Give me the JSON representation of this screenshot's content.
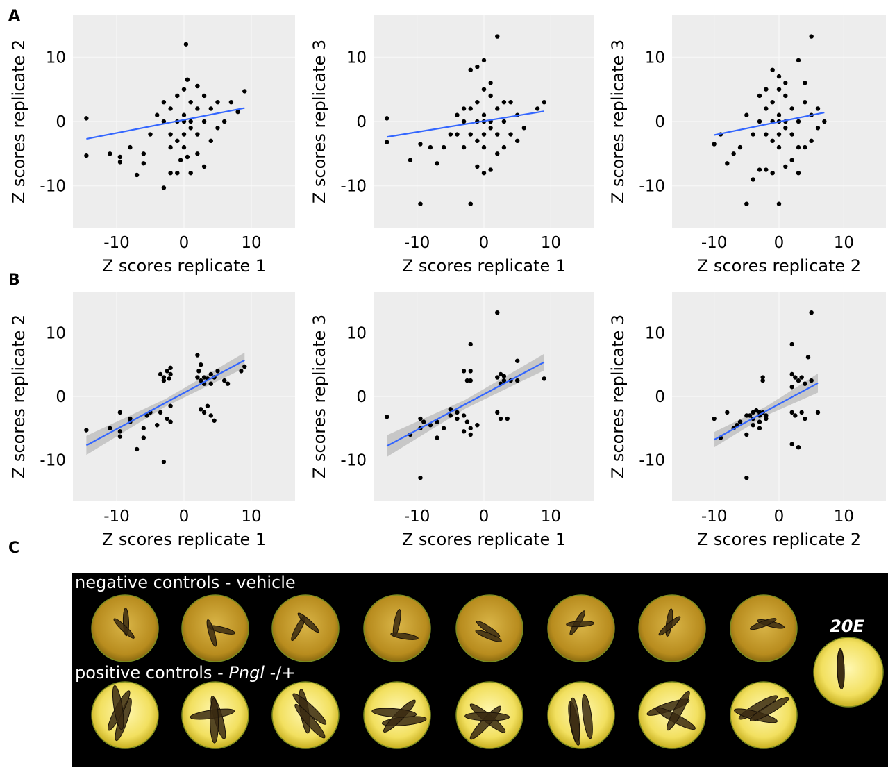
{
  "panel_labels": [
    "A",
    "B",
    "C"
  ],
  "chart_data": [
    {
      "type": "scatter",
      "x_label": "Z scores replicate 1",
      "y_label": "Z scores replicate 2",
      "xlim": [
        -16.5,
        16.5
      ],
      "ylim": [
        -16.5,
        16.5
      ],
      "xticks": [
        -10,
        0,
        10
      ],
      "yticks": [
        -10,
        0,
        10
      ],
      "color": "#000000",
      "x": [
        -14.5,
        -14.5,
        -11,
        -9.5,
        -9.5,
        -8,
        -7,
        -6,
        -6,
        -5,
        -3,
        -2,
        -1,
        1,
        3,
        0.3,
        0.5,
        2,
        3,
        5,
        9,
        7,
        6,
        8,
        -3,
        -4,
        -2,
        2,
        4,
        0,
        -1,
        1,
        -1,
        0,
        1,
        0,
        0,
        -1,
        1,
        2,
        -2,
        2,
        -2,
        3,
        -3,
        0,
        0.5,
        -0.5,
        4,
        5
      ],
      "y": [
        0.5,
        -5.3,
        -5,
        -5.5,
        -6.3,
        -4,
        -8.3,
        -6.5,
        -5,
        -2,
        -10.3,
        -8,
        -8,
        -8,
        -7,
        12,
        6.5,
        5.5,
        4,
        3,
        4.7,
        3,
        0,
        1.5,
        3,
        1,
        -4,
        -5,
        -3,
        5,
        4,
        3,
        -3,
        -2,
        -1,
        0,
        1,
        0,
        0,
        2,
        2,
        -2,
        -2,
        0,
        0,
        -4,
        -5.5,
        -6,
        2,
        -1
      ],
      "fit": {
        "color": "#3366ff",
        "x": [
          -14.5,
          9
        ],
        "y": [
          -2.7,
          2.1
        ]
      }
    },
    {
      "type": "scatter",
      "x_label": "Z scores replicate 1",
      "y_label": "Z scores replicate 3",
      "xlim": [
        -16.5,
        16.5
      ],
      "ylim": [
        -16.5,
        16.5
      ],
      "xticks": [
        -10,
        0,
        10
      ],
      "yticks": [
        -10,
        0,
        10
      ],
      "color": "#000000",
      "x": [
        -14.5,
        -14.5,
        -11,
        -9.5,
        -9.5,
        -8,
        -7,
        -6,
        -5,
        -3,
        -2,
        -1,
        0,
        1,
        2,
        2,
        -2,
        -1,
        0,
        1,
        3,
        5,
        8,
        9,
        6,
        4,
        -4,
        -3,
        0,
        1,
        -1,
        -1,
        0,
        1,
        0,
        0,
        -1,
        1,
        2,
        -2,
        2,
        -2,
        3,
        -3,
        0,
        4,
        -4,
        5,
        3
      ],
      "y": [
        0.5,
        -3.2,
        -6,
        -3.5,
        -12.8,
        -4,
        -6.5,
        -4,
        -2,
        -4,
        -12.8,
        -7,
        -8,
        -7.5,
        -5,
        13.2,
        8,
        8.5,
        9.5,
        6,
        3,
        1,
        2,
        3,
        -1,
        -2,
        1,
        2,
        5,
        4,
        3,
        -3,
        -2,
        -1,
        0,
        1,
        0,
        0,
        2,
        2,
        -2,
        -2,
        0,
        0,
        -4,
        3,
        -2,
        -3,
        -4
      ],
      "fit": {
        "color": "#3366ff",
        "x": [
          -14.5,
          9
        ],
        "y": [
          -2.4,
          1.6
        ]
      }
    },
    {
      "type": "scatter",
      "x_label": "Z scores replicate 2",
      "y_label": "Z scores replicate 3",
      "xlim": [
        -16.5,
        16.5
      ],
      "ylim": [
        -16.5,
        16.5
      ],
      "xticks": [
        -10,
        0,
        10
      ],
      "yticks": [
        -10,
        0,
        10
      ],
      "color": "#000000",
      "x": [
        -10,
        -9,
        -8,
        -7,
        -6,
        -5,
        -4,
        -3,
        -2,
        -1,
        0,
        1,
        2,
        3,
        4,
        5,
        -1,
        0,
        1,
        3,
        4,
        6,
        7,
        6,
        -3,
        -2,
        0,
        1,
        -1,
        -1,
        0,
        1,
        0,
        0,
        -1,
        1,
        2,
        -2,
        2,
        -2,
        3,
        -3,
        0,
        4,
        -4,
        5,
        3,
        -5,
        5
      ],
      "y": [
        -3.5,
        -2,
        -6.5,
        -5,
        -4,
        -12.8,
        -9,
        -7.5,
        -7.5,
        -8,
        -12.8,
        -7,
        -6,
        -8,
        -4,
        13.2,
        8,
        7,
        6,
        9.5,
        6,
        2,
        0,
        -1,
        4,
        5,
        5,
        4,
        3,
        -3,
        -2,
        -1,
        0,
        1,
        0,
        0,
        2,
        2,
        -2,
        -2,
        0,
        0,
        -4,
        3,
        -2,
        -3,
        -4,
        1,
        1
      ],
      "fit": {
        "color": "#3366ff",
        "x": [
          -10,
          7
        ],
        "y": [
          -2.1,
          1.4
        ]
      }
    },
    {
      "type": "scatter",
      "x_label": "Z scores replicate 1",
      "y_label": "Z scores replicate 2",
      "xlim": [
        -16.5,
        16.5
      ],
      "ylim": [
        -16.5,
        16.5
      ],
      "xticks": [
        -10,
        0,
        10
      ],
      "yticks": [
        -10,
        0,
        10
      ],
      "color": "#000000",
      "x": [
        -14.5,
        -11,
        -9.5,
        -9.5,
        -9.5,
        -8,
        -8,
        -7,
        -6,
        -6,
        -5.5,
        -5,
        -4,
        -3.5,
        -3,
        -2.5,
        -2,
        -2,
        -3.5,
        -3,
        -2.5,
        -2,
        -3,
        -2.2,
        -2,
        2,
        2.5,
        2,
        2.5,
        3,
        3.5,
        4,
        3,
        4,
        4.5,
        5,
        6,
        6.5,
        8.5,
        9,
        2.2,
        2.5,
        3,
        4,
        4.5,
        3.5
      ],
      "y": [
        -5.3,
        -5,
        -5.5,
        -6.3,
        -2.5,
        -3.5,
        -4,
        -8.3,
        -5,
        -6.5,
        -3,
        -2.5,
        -4.5,
        -2.5,
        -10.3,
        -3.5,
        -4,
        -1.5,
        3.5,
        3,
        4,
        4.5,
        2.5,
        2.8,
        3.5,
        6.5,
        5,
        3,
        2.5,
        3,
        2.8,
        3.5,
        2,
        2,
        3,
        4,
        2.5,
        2,
        4,
        4.7,
        4,
        -2,
        -2.5,
        -3,
        -3.8,
        -1.5
      ],
      "fit": {
        "color": "#3366ff",
        "x": [
          -14.5,
          -2.75,
          9
        ],
        "y": [
          -7.7,
          -1.0,
          5.7
        ],
        "lower": [
          -9.2,
          -1.6,
          4.5
        ],
        "upper": [
          -6.2,
          -0.4,
          6.9
        ]
      }
    },
    {
      "type": "scatter",
      "x_label": "Z scores replicate 1",
      "y_label": "Z scores replicate 3",
      "xlim": [
        -16.5,
        16.5
      ],
      "ylim": [
        -16.5,
        16.5
      ],
      "xticks": [
        -10,
        0,
        10
      ],
      "yticks": [
        -10,
        0,
        10
      ],
      "color": "#000000",
      "x": [
        -14.5,
        -11,
        -9.5,
        -9.5,
        -9,
        -9.5,
        -8,
        -7,
        -7,
        -6,
        -5,
        -5,
        -4,
        -3,
        -2.5,
        -2,
        -2,
        -3,
        -3,
        -2,
        -2,
        -2.5,
        -2,
        2,
        2,
        2.5,
        2.5,
        3,
        3,
        4,
        5,
        5,
        2,
        2.5,
        3.5,
        9,
        -1,
        -4
      ],
      "y": [
        -3.2,
        -6,
        -12.8,
        -3.5,
        -4,
        -5,
        -4.5,
        -4,
        -6.5,
        -5,
        -2,
        -3,
        -3.5,
        -3,
        -4,
        -6,
        -5,
        -5.5,
        4,
        4,
        8.2,
        2.5,
        2.5,
        13.2,
        3,
        3.5,
        2,
        3.2,
        2.5,
        2.5,
        5.6,
        2.5,
        -2.5,
        -3.5,
        -3.5,
        2.8,
        -4.5,
        -2.5
      ],
      "fit": {
        "color": "#3366ff",
        "x": [
          -14.5,
          -2.75,
          9
        ],
        "y": [
          -7.8,
          -1.2,
          5.4
        ],
        "lower": [
          -9.5,
          -1.9,
          4.1
        ],
        "upper": [
          -6.1,
          -0.5,
          6.7
        ]
      }
    },
    {
      "type": "scatter",
      "x_label": "Z scores replicate 2",
      "y_label": "Z scores replicate 3",
      "xlim": [
        -16.5,
        16.5
      ],
      "ylim": [
        -16.5,
        16.5
      ],
      "xticks": [
        -10,
        0,
        10
      ],
      "yticks": [
        -10,
        0,
        10
      ],
      "color": "#000000",
      "x": [
        -10,
        -9,
        -8,
        -7,
        -6,
        -6.5,
        -5,
        -5,
        -5,
        -4.5,
        -4,
        -4,
        -4,
        -3.5,
        -3,
        -3,
        -3,
        -2.5,
        -2,
        -2.5,
        -2.5,
        -2,
        -3,
        2,
        2,
        2,
        2.5,
        2.5,
        3,
        3.5,
        3.5,
        4,
        4.5,
        5,
        5,
        2,
        3,
        6,
        2,
        4
      ],
      "y": [
        -3.5,
        -6.5,
        -2.5,
        -5,
        -4,
        -4.5,
        -12.8,
        -3,
        -6,
        -3,
        -2.5,
        -3.5,
        -4.5,
        -2.2,
        -4,
        -3,
        -5,
        -2.5,
        -3,
        2.5,
        3,
        -3.5,
        -2.5,
        8.2,
        3.5,
        -2.5,
        3,
        -3,
        2.5,
        3,
        -2.5,
        -3.5,
        6.2,
        13.2,
        2.5,
        -7.5,
        -8,
        -2.5,
        1.5,
        2
      ],
      "fit": {
        "color": "#3366ff",
        "x": [
          -10,
          -2,
          6
        ],
        "y": [
          -6.8,
          -2.3,
          2.1
        ],
        "lower": [
          -8,
          -3.0,
          0.6
        ],
        "upper": [
          -5.6,
          -1.6,
          3.6
        ]
      }
    }
  ],
  "panel_c": {
    "negative_label": "negative controls - vehicle",
    "positive_label": [
      "positive controls - ",
      "Pngl",
      " -/+"
    ],
    "reference_label": "20E"
  }
}
